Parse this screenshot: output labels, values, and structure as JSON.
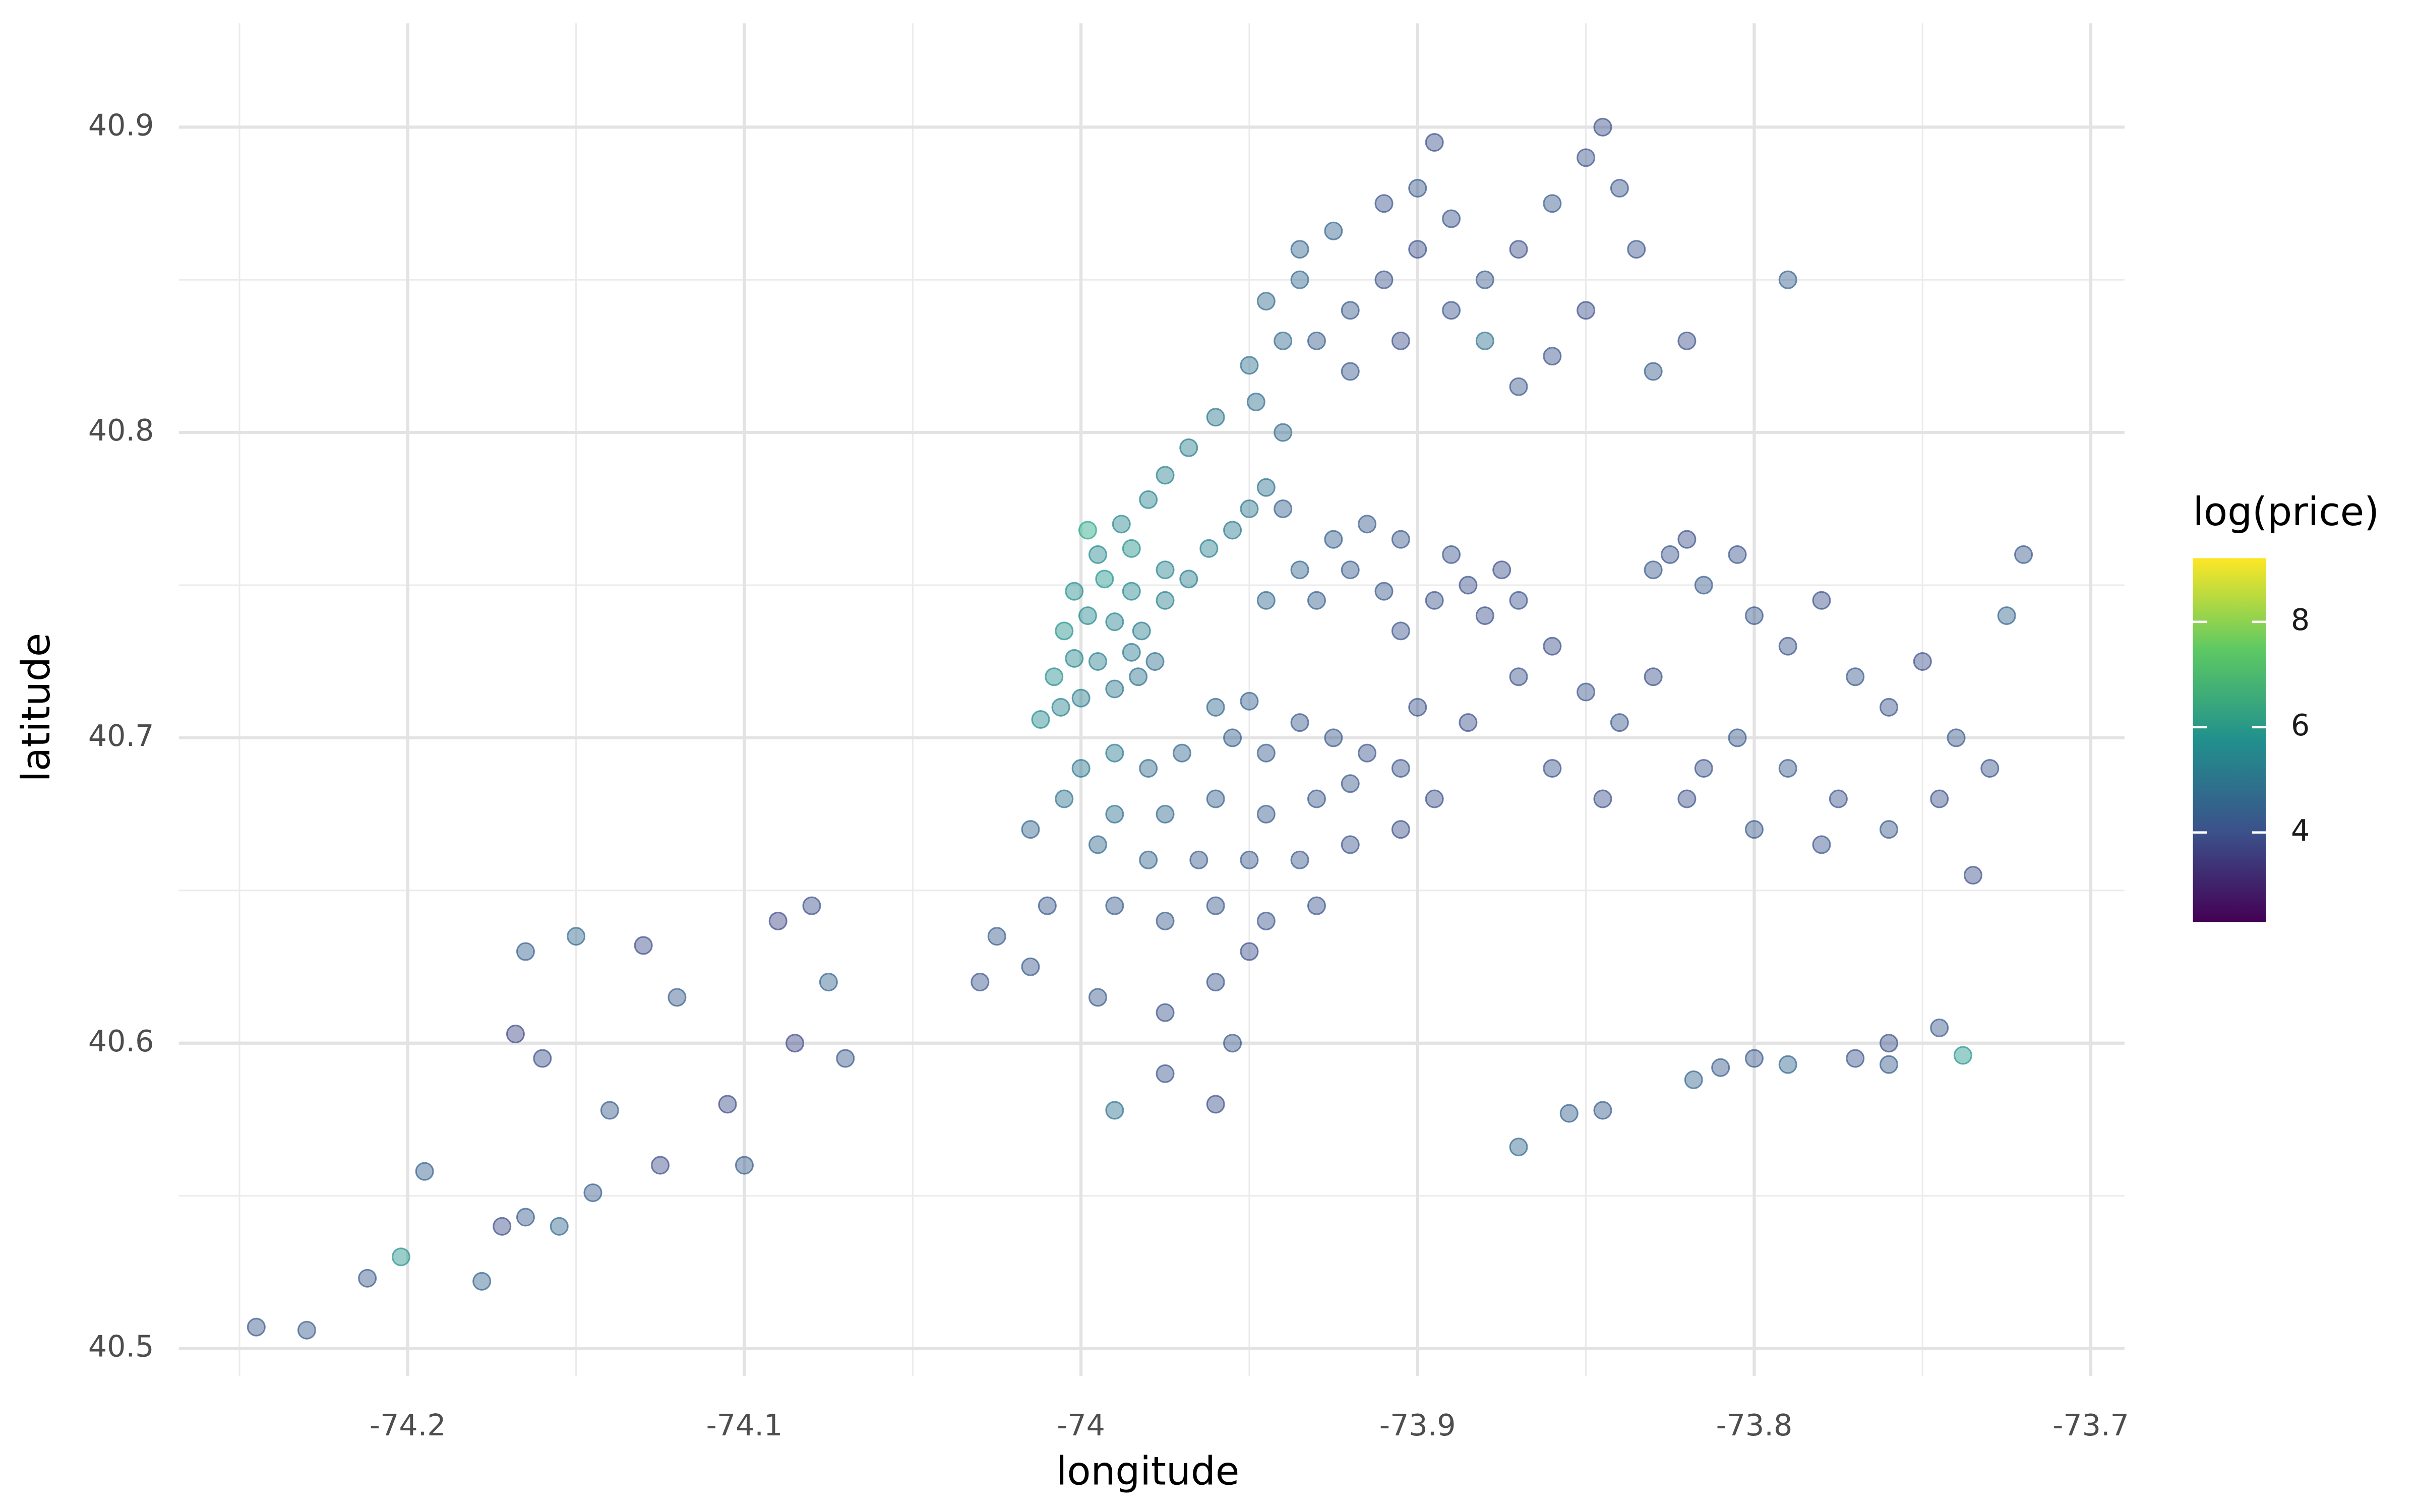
{
  "chart_data": {
    "type": "scatter",
    "x_label": "longitude",
    "y_label": "latitude",
    "color_label": "log(price)",
    "xlim": [
      -74.268,
      -73.69
    ],
    "ylim": [
      40.491,
      40.934
    ],
    "xticks": [
      -74.2,
      -74.1,
      -74.0,
      {
        "value": -73.9,
        "label": "-73.9"
      },
      -73.8,
      -73.7
    ],
    "yticks": [
      40.5,
      40.6,
      40.7,
      40.8,
      40.9
    ],
    "xminor": [
      -74.25,
      -74.15,
      -74.05,
      -73.95,
      -73.85,
      -73.75
    ],
    "yminor": [
      40.55,
      40.65,
      40.75,
      40.85
    ],
    "grid": true,
    "colormap": "viridis",
    "clim": [
      2.3,
      9.21
    ],
    "cticks": [
      4,
      6,
      8
    ],
    "legend": "right",
    "x": [
      -74.012,
      -74.006,
      -74.0,
      -73.99,
      -73.983,
      -74.008,
      -74.002,
      -73.995,
      -73.985,
      -73.978,
      -74.005,
      -73.998,
      -73.99,
      -73.982,
      -74.002,
      -73.993,
      -73.985,
      -73.975,
      -73.995,
      -73.985,
      -73.975,
      -73.968,
      -73.988,
      -73.98,
      -73.962,
      -73.955,
      -73.975,
      -73.968,
      -73.95,
      -73.945,
      -73.96,
      -73.948,
      -73.94,
      -73.95,
      -73.94,
      -73.945,
      -73.935,
      -73.935,
      -73.925,
      -73.998,
      -74.0,
      -73.99,
      -73.98,
      -73.97,
      -73.96,
      -73.95,
      -73.955,
      -73.945,
      -73.935,
      -73.925,
      -73.915,
      -73.905,
      -73.92,
      -73.93,
      -73.945,
      -73.96,
      -73.975,
      -73.99,
      -74.005,
      -74.015,
      -73.995,
      -73.98,
      -73.965,
      -73.95,
      -73.935,
      -73.92,
      -73.905,
      -73.895,
      -73.96,
      -73.945,
      -73.93,
      -73.975,
      -73.99,
      -74.01,
      -74.025,
      -74.03,
      -74.015,
      -73.995,
      -73.975,
      -73.96,
      -73.955,
      -73.975,
      -73.96,
      -73.99,
      -73.95,
      -73.945,
      -73.935,
      -73.925,
      -73.915,
      -73.905,
      -73.92,
      -73.91,
      -73.895,
      -73.885,
      -73.875,
      -73.89,
      -73.94,
      -73.93,
      -73.905,
      -73.88,
      -73.87,
      -73.9,
      -73.885,
      -73.87,
      -73.86,
      -73.85,
      -73.84,
      -73.83,
      -73.825,
      -73.83,
      -73.82,
      -73.815,
      -73.805,
      -73.8,
      -73.79,
      -73.78,
      -73.77,
      -73.76,
      -73.75,
      -73.74,
      -73.73,
      -73.745,
      -73.76,
      -73.775,
      -73.79,
      -73.805,
      -73.815,
      -73.82,
      -73.8,
      -73.78,
      -73.735,
      -73.725,
      -73.72,
      -73.86,
      -73.845,
      -73.93,
      -73.92,
      -73.91,
      -73.9,
      -73.89,
      -73.9,
      -73.895,
      -73.91,
      -73.92,
      -73.905,
      -73.89,
      -73.88,
      -73.87,
      -73.86,
      -73.85,
      -73.845,
      -73.84,
      -73.835,
      -73.85,
      -73.86,
      -73.87,
      -73.83,
      -73.82,
      -73.79,
      -73.88,
      -74.245,
      -74.23,
      -74.212,
      -74.202,
      -74.195,
      -74.178,
      -74.172,
      -74.165,
      -74.155,
      -74.145,
      -74.168,
      -74.16,
      -74.165,
      -74.15,
      -74.14,
      -74.13,
      -74.12,
      -74.125,
      -74.105,
      -74.1,
      -74.09,
      -74.08,
      -74.085,
      -74.075,
      -74.07,
      -73.87,
      -73.855,
      -73.845,
      -73.818,
      -73.81,
      -73.8,
      -73.79,
      -73.77,
      -73.76,
      -73.745,
      -73.738,
      -73.76
    ],
    "values": [
      40.706,
      40.71,
      40.713,
      40.716,
      40.72,
      40.72,
      40.726,
      40.725,
      40.728,
      40.725,
      40.735,
      40.74,
      40.738,
      40.735,
      40.748,
      40.752,
      40.748,
      40.745,
      40.76,
      40.762,
      40.755,
      40.752,
      40.77,
      40.778,
      40.762,
      40.768,
      40.786,
      40.795,
      40.775,
      40.782,
      40.805,
      40.81,
      40.8,
      40.822,
      40.83,
      40.843,
      40.85,
      40.86,
      40.866,
      40.768,
      40.69,
      40.695,
      40.69,
      40.695,
      40.71,
      40.712,
      40.7,
      40.695,
      40.705,
      40.7,
      40.695,
      40.69,
      40.685,
      40.68,
      40.675,
      40.68,
      40.675,
      40.675,
      40.68,
      40.67,
      40.665,
      40.66,
      40.66,
      40.66,
      40.66,
      40.665,
      40.67,
      40.68,
      40.645,
      40.64,
      40.645,
      40.64,
      40.645,
      40.645,
      40.635,
      40.62,
      40.625,
      40.615,
      40.61,
      40.62,
      40.6,
      40.59,
      40.58,
      40.578,
      40.63,
      40.745,
      40.755,
      40.765,
      40.77,
      40.765,
      40.755,
      40.748,
      40.745,
      40.75,
      40.755,
      40.76,
      40.775,
      40.745,
      40.735,
      40.74,
      40.745,
      40.71,
      40.705,
      40.72,
      40.73,
      40.715,
      40.705,
      40.72,
      40.76,
      40.755,
      40.765,
      40.75,
      40.76,
      40.74,
      40.73,
      40.745,
      40.72,
      40.71,
      40.725,
      40.7,
      40.69,
      40.68,
      40.67,
      40.68,
      40.69,
      40.7,
      40.69,
      40.68,
      40.67,
      40.665,
      40.655,
      40.74,
      40.76,
      40.69,
      40.68,
      40.83,
      40.84,
      40.85,
      40.86,
      40.87,
      40.88,
      40.895,
      40.875,
      40.82,
      40.83,
      40.84,
      40.85,
      40.86,
      40.875,
      40.89,
      40.9,
      40.88,
      40.86,
      40.84,
      40.825,
      40.815,
      40.82,
      40.83,
      40.85,
      40.83,
      40.507,
      40.506,
      40.523,
      40.53,
      40.558,
      40.522,
      40.54,
      40.543,
      40.54,
      40.551,
      40.603,
      40.595,
      40.63,
      40.635,
      40.578,
      40.632,
      40.615,
      40.56,
      40.58,
      40.56,
      40.64,
      40.645,
      40.6,
      40.62,
      40.595,
      40.566,
      40.577,
      40.578,
      40.588,
      40.592,
      40.595,
      40.593,
      40.595,
      40.6,
      40.605,
      40.596,
      40.593
    ],
    "color_values": [
      5.6,
      5.4,
      5.2,
      5.0,
      4.9,
      5.7,
      5.5,
      5.3,
      5.1,
      4.8,
      5.8,
      5.6,
      5.4,
      5.2,
      5.7,
      5.9,
      5.5,
      5.3,
      5.6,
      5.8,
      5.4,
      5.2,
      5.5,
      5.4,
      5.3,
      5.1,
      5.3,
      5.2,
      5.0,
      4.9,
      5.0,
      4.8,
      4.7,
      4.8,
      4.6,
      4.7,
      4.6,
      4.5,
      4.5,
      6.4,
      5.0,
      5.1,
      4.7,
      4.5,
      4.6,
      4.4,
      4.4,
      4.3,
      4.2,
      4.2,
      4.1,
      4.1,
      4.2,
      4.2,
      4.3,
      4.4,
      4.6,
      4.8,
      4.9,
      4.5,
      4.6,
      4.5,
      4.3,
      4.2,
      4.2,
      4.1,
      4.0,
      4.0,
      4.2,
      4.1,
      4.1,
      4.3,
      4.3,
      4.2,
      4.3,
      4.1,
      4.2,
      4.2,
      4.1,
      4.1,
      4.2,
      4.1,
      4.0,
      4.9,
      4.0,
      4.6,
      4.5,
      4.4,
      4.3,
      4.2,
      4.3,
      4.2,
      4.1,
      4.0,
      4.0,
      4.1,
      4.4,
      4.4,
      4.1,
      4.0,
      4.1,
      4.1,
      4.0,
      4.1,
      4.0,
      4.1,
      4.2,
      4.0,
      4.1,
      4.2,
      4.0,
      4.3,
      4.1,
      4.2,
      4.1,
      4.0,
      4.2,
      4.1,
      4.0,
      4.2,
      4.1,
      4.0,
      4.2,
      4.1,
      4.3,
      4.2,
      4.1,
      4.0,
      4.2,
      4.1,
      4.0,
      4.5,
      4.2,
      4.1,
      4.0,
      4.3,
      4.2,
      4.1,
      4.0,
      4.1,
      4.2,
      4.0,
      4.1,
      4.2,
      4.0,
      4.1,
      4.2,
      4.0,
      4.3,
      4.1,
      4.0,
      4.2,
      4.1,
      4.0,
      4.1,
      4.2,
      4.3,
      4.0,
      4.4,
      4.9,
      4.2,
      4.3,
      4.2,
      5.8,
      4.4,
      4.5,
      3.9,
      4.3,
      4.6,
      4.3,
      3.8,
      4.0,
      4.4,
      4.6,
      4.3,
      3.9,
      4.3,
      3.9,
      3.9,
      4.3,
      3.8,
      4.0,
      3.8,
      4.5,
      4.2,
      4.6,
      4.4,
      4.3,
      4.5,
      4.3,
      4.2,
      4.6,
      4.1,
      4.0,
      4.2,
      5.9,
      4.3
    ]
  }
}
